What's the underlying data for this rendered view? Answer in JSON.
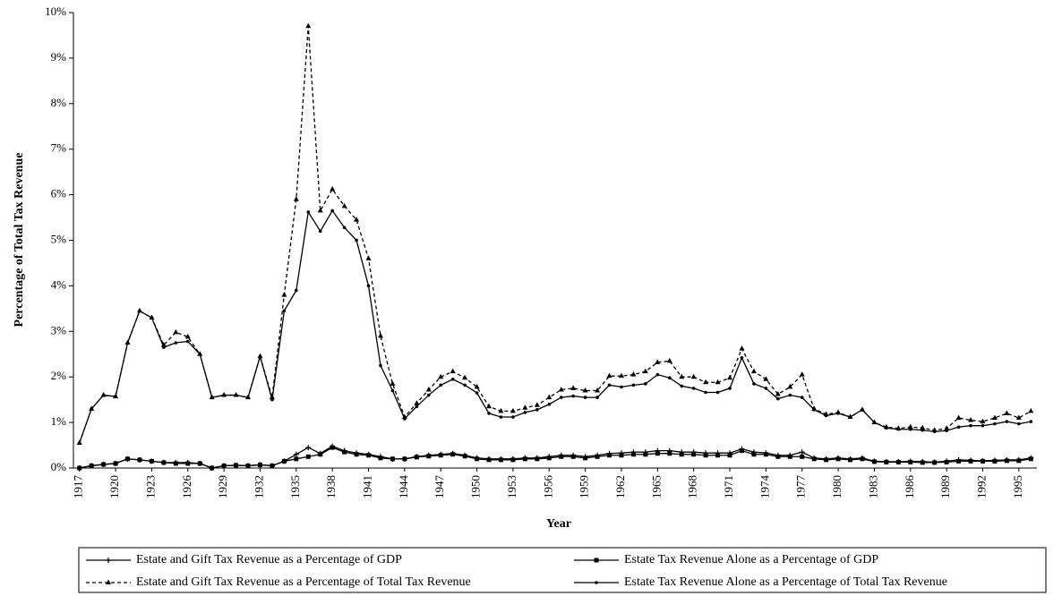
{
  "chart_data": {
    "type": "line",
    "xlabel": "Year",
    "ylabel": "Percentage of Total Tax Revenue",
    "x": [
      1917,
      1918,
      1919,
      1920,
      1921,
      1922,
      1923,
      1924,
      1925,
      1926,
      1927,
      1928,
      1929,
      1930,
      1931,
      1932,
      1933,
      1934,
      1935,
      1936,
      1937,
      1938,
      1939,
      1940,
      1941,
      1942,
      1943,
      1944,
      1945,
      1946,
      1947,
      1948,
      1949,
      1950,
      1951,
      1952,
      1953,
      1954,
      1955,
      1956,
      1957,
      1958,
      1959,
      1960,
      1961,
      1962,
      1963,
      1964,
      1965,
      1966,
      1967,
      1968,
      1969,
      1970,
      1971,
      1972,
      1973,
      1974,
      1975,
      1976,
      1977,
      1978,
      1979,
      1980,
      1981,
      1982,
      1983,
      1984,
      1985,
      1986,
      1987,
      1988,
      1989,
      1990,
      1991,
      1992,
      1993,
      1994,
      1995,
      1996
    ],
    "xlim": [
      1916.5,
      1996.5
    ],
    "xticks": [
      1917,
      1920,
      1923,
      1926,
      1929,
      1932,
      1935,
      1938,
      1941,
      1944,
      1947,
      1950,
      1953,
      1956,
      1959,
      1962,
      1965,
      1968,
      1971,
      1974,
      1977,
      1980,
      1983,
      1986,
      1989,
      1992,
      1995
    ],
    "ylim": [
      0,
      10
    ],
    "yticks": [
      {
        "value": 0,
        "label": "0%"
      },
      {
        "value": 1,
        "label": "1%"
      },
      {
        "value": 2,
        "label": "2%"
      },
      {
        "value": 3,
        "label": "3%"
      },
      {
        "value": 4,
        "label": "4%"
      },
      {
        "value": 5,
        "label": "5%"
      },
      {
        "value": 6,
        "label": "6%"
      },
      {
        "value": 7,
        "label": "7%"
      },
      {
        "value": 8,
        "label": "8%"
      },
      {
        "value": 9,
        "label": "9%"
      },
      {
        "value": 10,
        "label": "10%"
      }
    ],
    "grid": false,
    "legend": "bottom",
    "series": [
      {
        "name": "Estate and Gift Tax Revenue as a Percentage of GDP",
        "color": "#000000",
        "marker": "plus",
        "dashed": false,
        "values": [
          0,
          0.05,
          0.08,
          0.1,
          0.2,
          0.18,
          0.15,
          0.12,
          0.12,
          0.12,
          0.1,
          0,
          0.05,
          0.06,
          0.05,
          0.07,
          0.05,
          0.15,
          0.3,
          0.45,
          0.32,
          0.48,
          0.38,
          0.33,
          0.3,
          0.25,
          0.2,
          0.2,
          0.25,
          0.28,
          0.3,
          0.32,
          0.28,
          0.22,
          0.2,
          0.2,
          0.2,
          0.22,
          0.22,
          0.25,
          0.28,
          0.28,
          0.25,
          0.28,
          0.32,
          0.33,
          0.35,
          0.35,
          0.38,
          0.38,
          0.35,
          0.35,
          0.33,
          0.33,
          0.33,
          0.42,
          0.35,
          0.33,
          0.28,
          0.28,
          0.35,
          0.22,
          0.2,
          0.22,
          0.2,
          0.22,
          0.15,
          0.14,
          0.14,
          0.15,
          0.14,
          0.13,
          0.15,
          0.18,
          0.17,
          0.16,
          0.17,
          0.18,
          0.18,
          0.22
        ]
      },
      {
        "name": "Estate Tax Revenue Alone as a Percentage of GDP",
        "color": "#000000",
        "marker": "square",
        "dashed": false,
        "values": [
          0,
          0.05,
          0.08,
          0.1,
          0.2,
          0.18,
          0.15,
          0.12,
          0.1,
          0.1,
          0.1,
          0,
          0.05,
          0.06,
          0.05,
          0.07,
          0.05,
          0.15,
          0.2,
          0.25,
          0.3,
          0.45,
          0.35,
          0.3,
          0.28,
          0.22,
          0.2,
          0.2,
          0.24,
          0.26,
          0.28,
          0.3,
          0.26,
          0.2,
          0.18,
          0.18,
          0.18,
          0.2,
          0.2,
          0.22,
          0.25,
          0.25,
          0.22,
          0.25,
          0.28,
          0.28,
          0.3,
          0.3,
          0.32,
          0.32,
          0.3,
          0.3,
          0.28,
          0.28,
          0.28,
          0.38,
          0.3,
          0.3,
          0.25,
          0.25,
          0.25,
          0.2,
          0.18,
          0.2,
          0.18,
          0.2,
          0.14,
          0.13,
          0.13,
          0.13,
          0.12,
          0.12,
          0.13,
          0.15,
          0.15,
          0.15,
          0.15,
          0.16,
          0.16,
          0.2
        ]
      },
      {
        "name": "Estate and Gift Tax Revenue as a Percentage of Total Tax Revenue",
        "color": "#000000",
        "marker": "triangle",
        "dashed": true,
        "values": [
          0.55,
          1.3,
          1.6,
          1.57,
          2.75,
          3.45,
          3.3,
          2.7,
          2.98,
          2.88,
          2.5,
          1.55,
          1.6,
          1.6,
          1.55,
          2.45,
          1.55,
          3.8,
          5.9,
          9.7,
          5.65,
          6.12,
          5.75,
          5.45,
          4.6,
          2.9,
          1.85,
          1.12,
          1.42,
          1.72,
          2.0,
          2.12,
          1.98,
          1.78,
          1.35,
          1.25,
          1.25,
          1.32,
          1.38,
          1.55,
          1.72,
          1.75,
          1.7,
          1.7,
          2.02,
          2.02,
          2.05,
          2.12,
          2.32,
          2.35,
          2.0,
          2.0,
          1.88,
          1.88,
          1.98,
          2.62,
          2.12,
          1.95,
          1.62,
          1.78,
          2.05,
          1.3,
          1.18,
          1.22,
          1.12,
          1.28,
          1.0,
          0.9,
          0.87,
          0.9,
          0.88,
          0.83,
          0.87,
          1.1,
          1.05,
          1.02,
          1.1,
          1.2,
          1.1,
          1.25
        ]
      },
      {
        "name": "Estate Tax Revenue Alone as a Percentage of Total Tax Revenue",
        "color": "#000000",
        "marker": "circle",
        "dashed": false,
        "values": [
          0.55,
          1.3,
          1.6,
          1.57,
          2.75,
          3.45,
          3.3,
          2.65,
          2.75,
          2.78,
          2.5,
          1.55,
          1.6,
          1.6,
          1.55,
          2.45,
          1.5,
          3.45,
          3.9,
          5.62,
          5.2,
          5.65,
          5.28,
          5.0,
          4.0,
          2.25,
          1.7,
          1.08,
          1.35,
          1.6,
          1.82,
          1.95,
          1.82,
          1.65,
          1.2,
          1.12,
          1.12,
          1.22,
          1.28,
          1.4,
          1.55,
          1.58,
          1.55,
          1.55,
          1.82,
          1.78,
          1.82,
          1.85,
          2.05,
          1.98,
          1.8,
          1.75,
          1.66,
          1.66,
          1.75,
          2.42,
          1.85,
          1.75,
          1.52,
          1.6,
          1.55,
          1.28,
          1.15,
          1.2,
          1.12,
          1.28,
          1.0,
          0.88,
          0.85,
          0.85,
          0.83,
          0.8,
          0.82,
          0.9,
          0.93,
          0.93,
          0.97,
          1.02,
          0.97,
          1.02
        ]
      }
    ]
  }
}
